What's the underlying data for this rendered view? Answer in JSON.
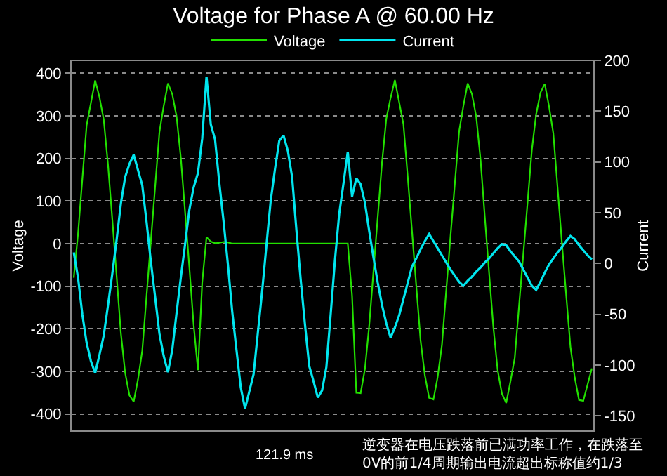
{
  "chart_data": {
    "type": "line",
    "title": "Voltage for Phase A @ 60.00 Hz",
    "ylabel": "Voltage",
    "y2label": "Current",
    "categories": [
      null,
      null,
      null,
      null,
      null,
      null,
      null,
      null,
      null,
      null,
      null,
      null,
      null,
      null,
      null,
      null,
      null,
      null,
      null,
      null,
      null,
      null,
      null,
      null,
      null,
      null,
      null,
      null,
      null,
      null,
      null,
      null,
      null,
      null,
      null,
      null,
      null,
      null,
      null,
      null,
      null,
      null,
      null,
      null,
      null,
      null,
      null,
      null,
      null,
      null,
      null,
      null,
      null,
      null,
      null,
      null,
      null,
      null,
      null,
      null,
      null,
      null,
      null,
      null,
      null,
      null,
      null,
      null,
      null,
      null,
      null,
      null,
      null,
      null,
      null,
      null,
      null,
      null,
      null,
      null,
      null,
      null,
      null,
      null,
      null,
      null,
      null,
      null,
      null,
      null,
      null,
      null,
      null,
      null,
      null,
      null,
      null,
      null,
      null,
      null,
      null,
      null,
      null,
      null,
      null,
      null,
      null,
      null,
      null,
      null,
      null,
      null,
      null,
      null,
      null,
      null,
      null,
      null,
      null,
      null,
      null,
      null
    ],
    "ylim": [
      -440,
      430
    ],
    "yticks": [
      -400,
      -300,
      -200,
      -100,
      0,
      100,
      200,
      300,
      400
    ],
    "y2lim": [
      -165,
      200
    ],
    "y2ticks": [
      -150,
      -100,
      -50,
      0,
      50,
      100,
      150,
      200
    ],
    "grid": "y",
    "legend": "top",
    "annotations": [
      "121.9 ms",
      "逆变器在电压跌落前已满功率工作，在跌落至\n0V的前1/4周期输出电流超出标称值约1/3"
    ],
    "series": [
      {
        "name": "Voltage",
        "color": "#22e000",
        "values": [
          -80,
          23,
          151,
          277,
          330,
          383,
          344,
          291,
          185,
          57,
          -75,
          -210,
          -303,
          -356,
          -371,
          -319,
          -251,
          -123,
          5,
          133,
          261,
          323,
          376,
          351,
          299,
          202,
          74,
          -56,
          -191,
          -297,
          -91,
          15,
          5,
          1,
          2,
          4,
          3,
          0,
          0,
          0,
          0,
          0,
          0,
          0,
          0,
          0,
          0,
          0,
          0,
          0,
          0,
          0,
          0,
          0,
          0,
          0,
          0,
          0,
          0,
          0,
          0,
          0,
          0,
          0,
          0,
          -122,
          -350,
          -351,
          -295,
          -193,
          -65,
          63,
          191,
          293,
          342,
          384,
          332,
          280,
          157,
          29,
          -99,
          -227,
          -309,
          -362,
          -366,
          -313,
          -237,
          -109,
          18,
          140,
          263,
          323,
          376,
          351,
          298,
          198,
          63,
          -68,
          -196,
          -297,
          -352,
          -374,
          -323,
          -268,
          -146,
          -24,
          98,
          221,
          304,
          354,
          375,
          322,
          259,
          131,
          3,
          -120,
          -242,
          -314,
          -367,
          -369,
          -331,
          -293
        ]
      },
      {
        "name": "Current",
        "color": "#00e5ee",
        "axis": "y2",
        "values": [
          11,
          -14,
          -50,
          -78,
          -96,
          -108,
          -90,
          -71,
          -41,
          -10,
          23,
          59,
          85,
          98,
          107,
          92,
          77,
          41,
          2,
          -33,
          -69,
          -91,
          -107,
          -85,
          -49,
          -14,
          19,
          53,
          75,
          89,
          123,
          184,
          137,
          122,
          79,
          41,
          -1,
          -47,
          -85,
          -122,
          -143,
          -126,
          -109,
          -68,
          -27,
          18,
          62,
          93,
          121,
          126,
          111,
          85,
          33,
          -16,
          -60,
          -101,
          -116,
          -132,
          -125,
          -102,
          -50,
          3,
          49,
          79,
          110,
          66,
          84,
          78,
          60,
          32,
          6,
          -19,
          -41,
          -59,
          -73,
          -63,
          -51,
          -35,
          -19,
          -3,
          5,
          14,
          22,
          29,
          22,
          15,
          8,
          1,
          -6,
          -12,
          -18,
          -22,
          -17,
          -13,
          -8,
          -4,
          1,
          5,
          10,
          15,
          19,
          18,
          12,
          7,
          2,
          -6,
          -14,
          -22,
          -26,
          -18,
          -9,
          -1,
          5,
          11,
          16,
          22,
          27,
          24,
          18,
          13,
          8,
          4
        ]
      }
    ]
  }
}
